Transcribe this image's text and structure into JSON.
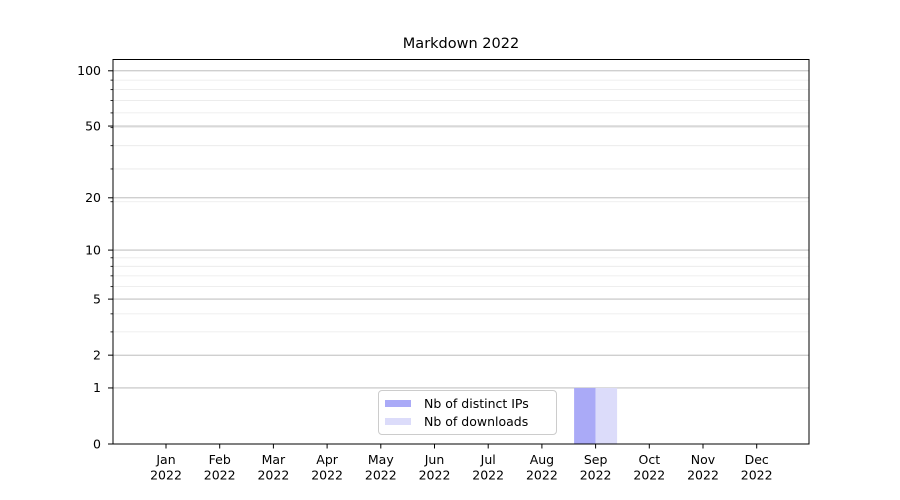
{
  "chart_data": {
    "type": "bar",
    "title": "Markdown 2022",
    "x_axis": {
      "months": [
        "Jan",
        "Feb",
        "Mar",
        "Apr",
        "May",
        "Jun",
        "Jul",
        "Aug",
        "Sep",
        "Oct",
        "Nov",
        "Dec"
      ],
      "year": "2022"
    },
    "y_axis": {
      "scale": "log1p",
      "major_ticks": [
        0,
        1,
        2,
        5,
        10,
        20,
        50,
        100
      ],
      "minor_ticks": [
        3,
        4,
        6,
        7,
        8,
        9,
        19,
        29,
        39,
        49,
        59,
        69,
        79,
        89
      ],
      "top_limit": 115
    },
    "series": [
      {
        "name": "Nb of distinct IPs",
        "color": "#aaaaf7",
        "values": [
          0,
          0,
          0,
          0,
          0,
          0,
          0,
          0,
          1,
          0,
          0,
          0
        ]
      },
      {
        "name": "Nb of downloads",
        "color": "#dcdcfa",
        "values": [
          0,
          0,
          0,
          0,
          0,
          0,
          0,
          0,
          1,
          0,
          0,
          0
        ]
      }
    ],
    "legend": {
      "position": "lower-center"
    },
    "grid": true,
    "colors": {
      "background": "#ffffff",
      "axis": "#000000",
      "major_grid": "#b2b2b2",
      "minor_grid": "#e9e9e9",
      "legend_border": "#cccccc",
      "text": "#000000"
    }
  }
}
